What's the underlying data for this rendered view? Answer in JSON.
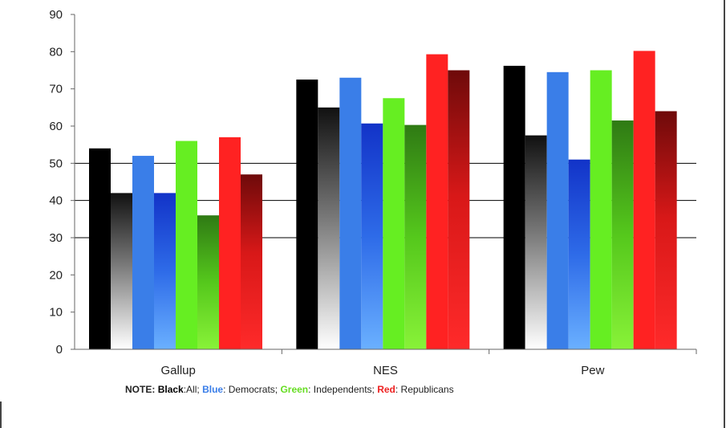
{
  "chart_data": {
    "type": "bar",
    "categories": [
      "Gallup",
      "NES",
      "Pew"
    ],
    "ylim": [
      0,
      90
    ],
    "yticks": [
      0,
      10,
      20,
      30,
      40,
      50,
      60,
      70,
      80,
      90
    ],
    "gridlines": [
      30,
      40,
      50
    ],
    "title": "",
    "xlabel": "",
    "ylabel": "",
    "series": [
      {
        "color": "#000000",
        "style": "solid",
        "values": [
          54,
          72.5,
          76.2
        ]
      },
      {
        "color": "#000000",
        "style": "gradient",
        "values": [
          42,
          65,
          57.5
        ]
      },
      {
        "color": "#3a7ee8",
        "style": "solid",
        "values": [
          52,
          73,
          74.5
        ]
      },
      {
        "color": "#1a4fd8",
        "style": "gradient",
        "values": [
          42,
          60.7,
          51
        ]
      },
      {
        "color": "#66ee22",
        "style": "solid",
        "values": [
          56,
          67.5,
          75
        ]
      },
      {
        "color": "#3a9a1a",
        "style": "gradient",
        "values": [
          36,
          60.3,
          61.5
        ]
      },
      {
        "color": "#ff2222",
        "style": "solid",
        "values": [
          57,
          79.3,
          80.2
        ]
      },
      {
        "color": "#8a1010",
        "style": "gradient",
        "values": [
          47,
          75,
          64
        ]
      }
    ]
  },
  "note": {
    "prefix": "NOTE:",
    "black_label": "Black",
    "black_text": ":All;",
    "blue_label": "Blue",
    "blue_text": ": Democrats;",
    "green_label": "Green",
    "green_text": ": Independents;",
    "red_label": "Red",
    "red_text": ": Republicans"
  }
}
